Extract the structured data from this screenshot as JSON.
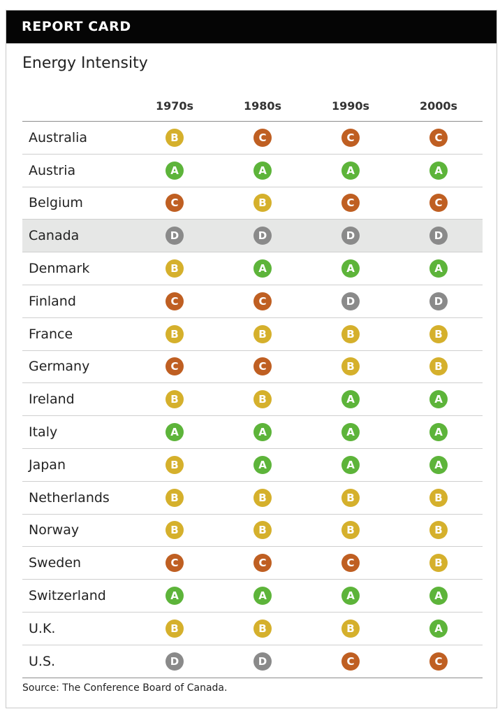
{
  "header": {
    "title": "REPORT CARD"
  },
  "subtitle": "Energy Intensity",
  "table": {
    "columns": [
      "1970s",
      "1980s",
      "1990s",
      "2000s"
    ],
    "highlighted_country": "Canada",
    "rows": [
      {
        "country": "Australia",
        "grades": [
          "B",
          "C",
          "C",
          "C"
        ]
      },
      {
        "country": "Austria",
        "grades": [
          "A",
          "A",
          "A",
          "A"
        ]
      },
      {
        "country": "Belgium",
        "grades": [
          "C",
          "B",
          "C",
          "C"
        ]
      },
      {
        "country": "Canada",
        "grades": [
          "D",
          "D",
          "D",
          "D"
        ]
      },
      {
        "country": "Denmark",
        "grades": [
          "B",
          "A",
          "A",
          "A"
        ]
      },
      {
        "country": "Finland",
        "grades": [
          "C",
          "C",
          "D",
          "D"
        ]
      },
      {
        "country": "France",
        "grades": [
          "B",
          "B",
          "B",
          "B"
        ]
      },
      {
        "country": "Germany",
        "grades": [
          "C",
          "C",
          "B",
          "B"
        ]
      },
      {
        "country": "Ireland",
        "grades": [
          "B",
          "B",
          "A",
          "A"
        ]
      },
      {
        "country": "Italy",
        "grades": [
          "A",
          "A",
          "A",
          "A"
        ]
      },
      {
        "country": "Japan",
        "grades": [
          "B",
          "A",
          "A",
          "A"
        ]
      },
      {
        "country": "Netherlands",
        "grades": [
          "B",
          "B",
          "B",
          "B"
        ]
      },
      {
        "country": "Norway",
        "grades": [
          "B",
          "B",
          "B",
          "B"
        ]
      },
      {
        "country": "Sweden",
        "grades": [
          "C",
          "C",
          "C",
          "B"
        ]
      },
      {
        "country": "Switzerland",
        "grades": [
          "A",
          "A",
          "A",
          "A"
        ]
      },
      {
        "country": "U.K.",
        "grades": [
          "B",
          "B",
          "B",
          "A"
        ]
      },
      {
        "country": "U.S.",
        "grades": [
          "D",
          "D",
          "C",
          "C"
        ]
      }
    ]
  },
  "grade_colors": {
    "A": "#5db43a",
    "B": "#d5b02c",
    "C": "#bf5f22",
    "D": "#8a8a8a"
  },
  "highlight_color": "#e6e7e6",
  "header_color": "#050505",
  "source": "Source: The Conference Board of Canada."
}
